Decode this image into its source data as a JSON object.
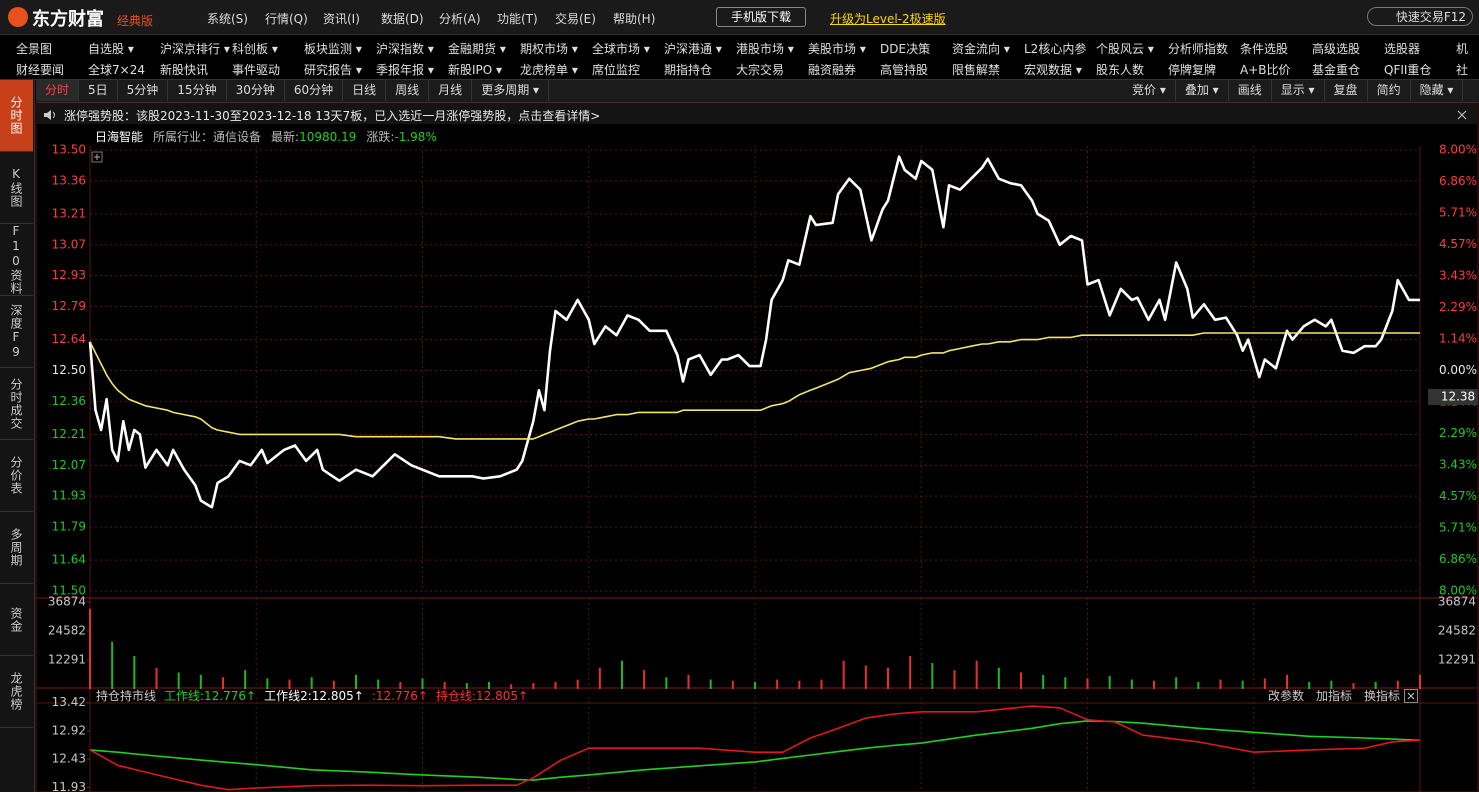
{
  "header": {
    "logo": "东方财富",
    "edition": "经典版",
    "menu": [
      "系统(S)",
      "行情(Q)",
      "资讯(I)",
      "数据(D)",
      "分析(A)",
      "功能(T)",
      "交易(E)",
      "帮助(H)"
    ],
    "mobile": "手机版下载",
    "upgrade": "升级为Level-2极速版",
    "quick_trade": "快速交易F12"
  },
  "nav": {
    "row1": [
      "全景图",
      "自选股 ▾",
      "沪深京排行 ▾",
      "科创板 ▾",
      "板块监测 ▾",
      "沪深指数 ▾",
      "金融期货 ▾",
      "期权市场 ▾",
      "全球市场 ▾",
      "沪深港通 ▾",
      "港股市场 ▾",
      "美股市场 ▾",
      "DDE决策",
      "资金流向 ▾",
      "L2核心内参",
      "个股风云 ▾",
      "分析师指数",
      "条件选股",
      "高级选股",
      "选股器",
      "机"
    ],
    "row2": [
      "财经要闻",
      "全球7×24",
      "新股快讯",
      "事件驱动",
      "研究报告 ▾",
      "季报年报 ▾",
      "新股IPO ▾",
      "龙虎榜单 ▾",
      "席位监控",
      "期指持仓",
      "大宗交易",
      "融资融券",
      "高管持股",
      "限售解禁",
      "宏观数据 ▾",
      "股东人数",
      "停牌复牌",
      "A+B比价",
      "基金重仓",
      "QFII重仓",
      "社"
    ]
  },
  "sidebar": [
    "分时图",
    "K线图",
    "F10资料",
    "深度F9",
    "分时成交",
    "分价表",
    "多周期",
    "资金",
    "龙虎榜"
  ],
  "tabs": {
    "periods": [
      "分时",
      "5日",
      "5分钟",
      "15分钟",
      "30分钟",
      "60分钟",
      "日线",
      "周线",
      "月线",
      "更多周期 ▾"
    ],
    "tools": [
      "竞价 ▾",
      "叠加 ▾",
      "画线",
      "显示 ▾",
      "复盘",
      "简约",
      "隐藏 ▾"
    ]
  },
  "notice": "涨停强势股：该股2023-11-30至2023-12-18 13天7板，已入选近一月涨停强势股，点击查看详情>",
  "quote": {
    "name": "日海智能",
    "industry": "所属行业：通信设备",
    "latest_label": "最新:",
    "latest": "10980.19",
    "change_label": "涨跌:",
    "change": "-1.98%"
  },
  "chart_data": [
    {
      "type": "line",
      "xlim": [
        0,
        240
      ],
      "xticks": [
        30,
        60,
        90,
        120,
        150,
        180,
        210
      ],
      "ylim": [
        11.5,
        13.5
      ],
      "yticks": [
        {
          "value": 13.5,
          "label": "13.50"
        },
        13.36,
        13.21,
        13.07,
        12.93,
        12.79,
        12.64,
        {
          "value": 12.5,
          "label": "12.50"
        },
        12.36,
        12.21,
        12.07,
        11.93,
        11.79,
        11.64,
        {
          "value": 11.5,
          "label": "11.50"
        }
      ],
      "y2lim": [
        -8,
        8
      ],
      "y2ticks": [
        {
          "value": 8,
          "label": "8.00%"
        },
        {
          "value": 6.86,
          "label": "6.86%"
        },
        {
          "value": 5.71,
          "label": "5.71%"
        },
        {
          "value": 4.57,
          "label": "4.57%"
        },
        {
          "value": 3.43,
          "label": "3.43%"
        },
        {
          "value": 2.29,
          "label": "2.29%"
        },
        {
          "value": 1.14,
          "label": "1.14%"
        },
        {
          "value": 0,
          "label": "0.00%"
        },
        {
          "value": -1.14,
          "label": "1.14%"
        },
        {
          "value": -2.29,
          "label": "2.29%"
        },
        {
          "value": -3.43,
          "label": "3.43%"
        },
        {
          "value": -4.57,
          "label": "4.57%"
        },
        {
          "value": -5.71,
          "label": "5.71%"
        },
        {
          "value": -6.86,
          "label": "6.86%"
        },
        {
          "value": -8,
          "label": "8.00%"
        }
      ],
      "marker": {
        "value": 12.38,
        "label": "12.38"
      },
      "grid": true,
      "x": [
        0,
        1,
        2,
        3,
        4,
        5,
        6,
        7,
        8,
        9,
        10,
        12,
        14,
        15,
        17,
        19,
        20,
        22,
        23,
        25,
        27,
        29,
        31,
        32,
        35,
        37,
        39,
        41,
        42,
        45,
        48,
        51,
        53,
        55,
        58,
        60,
        63,
        66,
        69,
        71,
        74,
        77,
        78,
        80,
        81,
        82,
        83,
        84,
        86,
        88,
        90,
        91,
        93,
        95,
        97,
        99,
        101,
        104,
        106,
        107,
        108,
        110,
        112,
        114,
        115,
        117,
        119,
        121,
        122,
        123,
        125,
        126,
        128,
        130,
        131,
        134,
        135,
        137,
        139,
        141,
        143,
        144,
        146,
        147,
        149,
        150,
        152,
        154,
        155,
        157,
        159,
        161,
        162,
        164,
        166,
        168,
        170,
        171,
        173,
        175,
        177,
        179,
        180,
        182,
        184,
        186,
        188,
        189,
        191,
        193,
        194,
        196,
        198,
        199,
        201,
        203,
        205,
        207,
        208,
        209,
        211,
        212,
        214,
        216,
        217,
        219,
        221,
        223,
        224,
        226,
        228,
        230,
        232,
        233,
        235,
        236,
        238,
        240
      ],
      "series": [
        {
          "color": "#ffffff",
          "values": [
            12.63,
            12.32,
            12.23,
            12.37,
            12.14,
            12.09,
            12.27,
            12.14,
            12.23,
            12.21,
            12.06,
            12.14,
            12.07,
            12.14,
            12.05,
            11.98,
            11.91,
            11.88,
            11.99,
            12.02,
            12.09,
            12.07,
            12.14,
            12.08,
            12.14,
            12.16,
            12.09,
            12.14,
            12.05,
            12.0,
            12.05,
            12.02,
            12.07,
            12.12,
            12.07,
            12.05,
            12.02,
            12.02,
            12.02,
            12.01,
            12.02,
            12.05,
            12.09,
            12.27,
            12.41,
            12.32,
            12.59,
            12.77,
            12.73,
            12.82,
            12.73,
            12.62,
            12.7,
            12.66,
            12.75,
            12.73,
            12.68,
            12.68,
            12.57,
            12.45,
            12.55,
            12.57,
            12.48,
            12.55,
            12.55,
            12.57,
            12.52,
            12.52,
            12.64,
            12.82,
            12.91,
            13.0,
            12.98,
            13.2,
            13.16,
            13.17,
            13.3,
            13.37,
            13.32,
            13.09,
            13.23,
            13.27,
            13.47,
            13.41,
            13.37,
            13.45,
            13.41,
            13.15,
            13.34,
            13.32,
            13.37,
            13.42,
            13.46,
            13.37,
            13.35,
            13.34,
            13.27,
            13.21,
            13.18,
            13.07,
            13.11,
            13.09,
            12.89,
            12.91,
            12.75,
            12.87,
            12.82,
            12.83,
            12.73,
            12.82,
            12.73,
            12.99,
            12.87,
            12.74,
            12.8,
            12.73,
            12.74,
            12.66,
            12.59,
            12.64,
            12.47,
            12.55,
            12.51,
            12.68,
            12.64,
            12.7,
            12.73,
            12.7,
            12.73,
            12.59,
            12.58,
            12.61,
            12.61,
            12.64,
            12.77,
            12.91,
            12.82,
            12.82
          ]
        },
        {
          "color": "#f0e66a",
          "values": [
            12.63,
            12.58,
            12.53,
            12.48,
            12.44,
            12.41,
            12.39,
            12.37,
            12.36,
            12.35,
            12.34,
            12.33,
            12.32,
            12.31,
            12.3,
            12.29,
            12.28,
            12.24,
            12.23,
            12.22,
            12.21,
            12.21,
            12.21,
            12.21,
            12.21,
            12.21,
            12.21,
            12.21,
            12.21,
            12.21,
            12.2,
            12.2,
            12.2,
            12.2,
            12.2,
            12.2,
            12.2,
            12.19,
            12.19,
            12.19,
            12.19,
            12.19,
            12.19,
            12.19,
            12.2,
            12.21,
            12.22,
            12.23,
            12.25,
            12.27,
            12.28,
            12.28,
            12.29,
            12.3,
            12.3,
            12.31,
            12.31,
            12.31,
            12.31,
            12.32,
            12.32,
            12.32,
            12.32,
            12.32,
            12.32,
            12.32,
            12.32,
            12.32,
            12.33,
            12.34,
            12.35,
            12.36,
            12.39,
            12.41,
            12.42,
            12.45,
            12.46,
            12.49,
            12.5,
            12.51,
            12.53,
            12.54,
            12.55,
            12.56,
            12.56,
            12.57,
            12.58,
            12.58,
            12.59,
            12.6,
            12.61,
            12.62,
            12.62,
            12.63,
            12.63,
            12.64,
            12.64,
            12.64,
            12.65,
            12.65,
            12.65,
            12.66,
            12.66,
            12.66,
            12.66,
            12.66,
            12.66,
            12.66,
            12.66,
            12.66,
            12.66,
            12.66,
            12.66,
            12.66,
            12.67,
            12.67,
            12.67,
            12.67,
            12.67,
            12.67,
            12.67,
            12.67,
            12.67,
            12.67,
            12.67,
            12.67,
            12.67,
            12.67,
            12.67,
            12.67,
            12.67,
            12.67,
            12.67,
            12.67,
            12.67,
            12.67,
            12.67,
            12.67
          ]
        }
      ]
    },
    {
      "type": "bar",
      "xlim": [
        0,
        240
      ],
      "xticks": [
        30,
        60,
        90,
        120,
        150,
        180,
        210
      ],
      "ylim": [
        0,
        36874
      ],
      "yticks": [
        36874,
        24582,
        12291
      ],
      "mirror_ticks": true,
      "x": [
        0,
        4,
        8,
        12,
        16,
        20,
        24,
        28,
        32,
        36,
        40,
        44,
        48,
        52,
        56,
        60,
        64,
        68,
        72,
        76,
        80,
        84,
        88,
        92,
        96,
        100,
        104,
        108,
        112,
        116,
        120,
        124,
        128,
        132,
        136,
        140,
        144,
        148,
        152,
        156,
        160,
        164,
        168,
        172,
        176,
        180,
        184,
        188,
        192,
        196,
        200,
        204,
        208,
        212,
        216,
        220,
        224,
        228,
        232,
        236,
        240
      ],
      "values": [
        34000,
        20000,
        14000,
        9000,
        7000,
        6000,
        5000,
        8000,
        4500,
        4000,
        5000,
        3500,
        6000,
        4000,
        3000,
        4500,
        3000,
        2500,
        3000,
        2000,
        2500,
        3000,
        4000,
        9000,
        12000,
        8000,
        5000,
        6000,
        4000,
        3500,
        3000,
        4000,
        3500,
        4000,
        12000,
        10000,
        9000,
        14000,
        11000,
        8000,
        12000,
        9000,
        7000,
        6000,
        5000,
        4500,
        5500,
        4000,
        3500,
        5000,
        3000,
        4000,
        3500,
        4500,
        6000,
        3000,
        3500,
        2500,
        3000,
        3500,
        6000
      ],
      "colors": [
        "#e83030",
        "#20b820",
        "#20b820",
        "#e83030",
        "#20b820",
        "#20b820",
        "#e83030",
        "#20b820",
        "#20b820",
        "#e83030",
        "#20b820",
        "#e83030",
        "#20b820",
        "#20b820",
        "#e83030",
        "#20b820",
        "#e83030",
        "#20b820",
        "#20b820",
        "#e83030",
        "#e83030",
        "#e83030",
        "#e83030",
        "#e83030",
        "#20b820",
        "#e83030",
        "#20b820",
        "#e83030",
        "#20b820",
        "#e83030",
        "#20b820",
        "#e83030",
        "#e83030",
        "#e83030",
        "#e83030",
        "#e83030",
        "#e83030",
        "#e83030",
        "#20b820",
        "#e83030",
        "#e83030",
        "#20b820",
        "#e83030",
        "#20b820",
        "#20b820",
        "#e83030",
        "#20b820",
        "#20b820",
        "#e83030",
        "#20b820",
        "#20b820",
        "#e83030",
        "#20b820",
        "#e83030",
        "#e83030",
        "#20b820",
        "#20b820",
        "#e83030",
        "#20b820",
        "#e83030",
        "#e83030"
      ]
    },
    {
      "type": "line",
      "title": "持仓持市线",
      "labels": [
        {
          "text": "工作线:12.776↑",
          "color": "#20d020"
        },
        {
          "text": "工作线2:12.805↑",
          "color": "#ffffff"
        },
        {
          "text": ":12.776↑",
          "color": "#ff3030"
        },
        {
          "text": "持仓线:12.805↑",
          "color": "#ff3030"
        }
      ],
      "buttons": [
        "改参数",
        "加指标",
        "换指标"
      ],
      "xlim": [
        0,
        240
      ],
      "xticks": [
        30,
        60,
        90,
        120,
        150,
        180,
        210
      ],
      "ylim": [
        11.85,
        13.45
      ],
      "yticks": [
        13.42,
        12.92,
        12.43,
        11.93
      ],
      "x": [
        0,
        5,
        10,
        20,
        25,
        30,
        40,
        50,
        60,
        70,
        77,
        80,
        85,
        90,
        100,
        110,
        120,
        125,
        130,
        135,
        140,
        145,
        150,
        160,
        170,
        175,
        180,
        185,
        190,
        200,
        210,
        220,
        230,
        235,
        240
      ],
      "series": [
        {
          "color": "#20d020",
          "values": [
            12.59,
            12.55,
            12.5,
            12.41,
            12.37,
            12.33,
            12.24,
            12.2,
            12.15,
            12.11,
            12.07,
            12.06,
            12.11,
            12.15,
            12.24,
            12.31,
            12.38,
            12.44,
            12.5,
            12.56,
            12.62,
            12.67,
            12.71,
            12.85,
            12.97,
            13.05,
            13.1,
            13.09,
            13.06,
            12.97,
            12.9,
            12.83,
            12.8,
            12.78,
            12.76
          ]
        },
        {
          "color": "#e01818",
          "values": [
            12.59,
            12.32,
            12.2,
            11.97,
            11.89,
            11.92,
            11.96,
            11.97,
            11.96,
            11.97,
            11.97,
            12.1,
            12.41,
            12.62,
            12.62,
            12.62,
            12.55,
            12.55,
            12.8,
            12.97,
            13.15,
            13.22,
            13.26,
            13.26,
            13.36,
            13.33,
            13.12,
            13.08,
            12.85,
            12.73,
            12.55,
            12.59,
            12.62,
            12.73,
            12.76
          ]
        }
      ]
    }
  ]
}
